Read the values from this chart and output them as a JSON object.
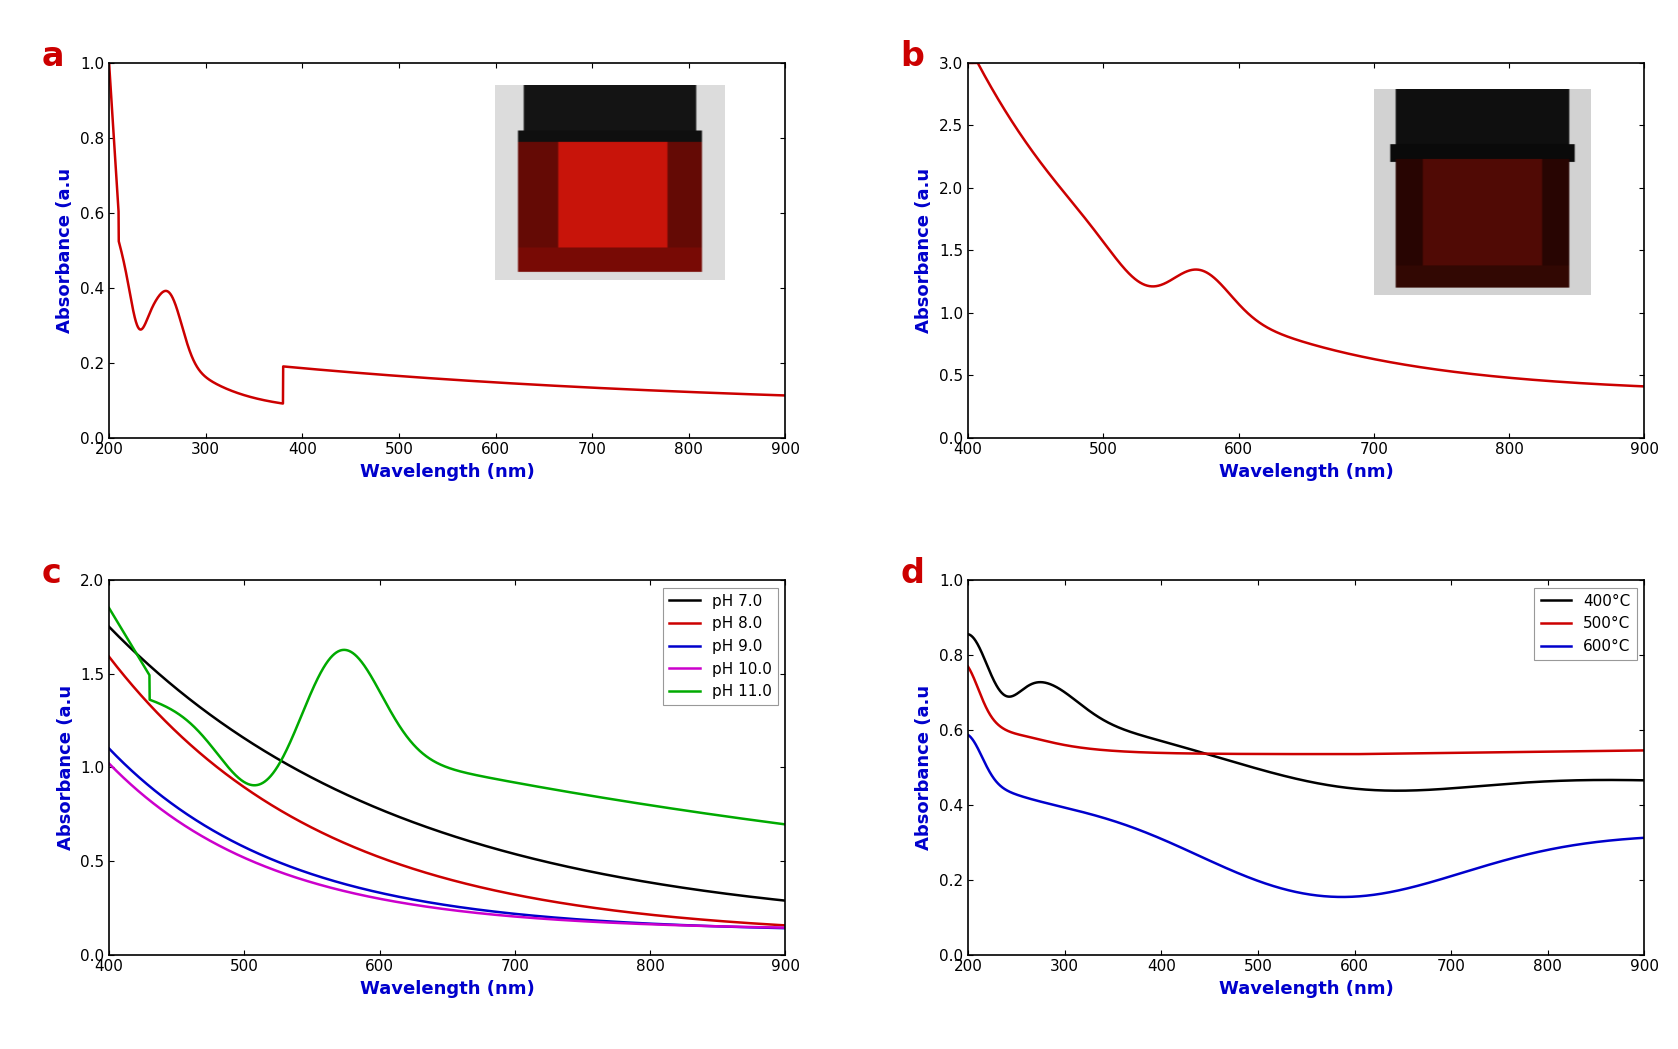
{
  "panel_a": {
    "label": "a",
    "xlabel": "Wavelength (nm)",
    "ylabel": "Absorbance (a.u",
    "xlim": [
      200,
      900
    ],
    "ylim": [
      0.0,
      1.0
    ],
    "xticks": [
      200,
      300,
      400,
      500,
      600,
      700,
      800,
      900
    ],
    "yticks": [
      0.0,
      0.2,
      0.4,
      0.6,
      0.8,
      1.0
    ],
    "line_color": "#cc0000"
  },
  "panel_b": {
    "label": "b",
    "xlabel": "Wavelength (nm)",
    "ylabel": "Absorbance (a.u",
    "xlim": [
      400,
      900
    ],
    "ylim": [
      0.0,
      3.0
    ],
    "xticks": [
      400,
      500,
      600,
      700,
      800,
      900
    ],
    "yticks": [
      0.0,
      0.5,
      1.0,
      1.5,
      2.0,
      2.5,
      3.0
    ],
    "line_color": "#cc0000"
  },
  "panel_c": {
    "label": "c",
    "xlabel": "Wavelength (nm)",
    "ylabel": "Absorbance (a.u",
    "xlim": [
      400,
      900
    ],
    "ylim": [
      0.0,
      2.0
    ],
    "xticks": [
      400,
      500,
      600,
      700,
      800,
      900
    ],
    "yticks": [
      0.0,
      0.5,
      1.0,
      1.5,
      2.0
    ],
    "legend_labels": [
      "pH 7.0",
      "pH 8.0",
      "pH 9.0",
      "pH 10.0",
      "pH 11.0"
    ],
    "legend_colors": [
      "#000000",
      "#cc0000",
      "#0000cc",
      "#cc00cc",
      "#00aa00"
    ]
  },
  "panel_d": {
    "label": "d",
    "xlabel": "Wavelength (nm)",
    "ylabel": "Absorbance (a.u",
    "xlim": [
      200,
      900
    ],
    "ylim": [
      0.0,
      1.0
    ],
    "xticks": [
      200,
      300,
      400,
      500,
      600,
      700,
      800,
      900
    ],
    "yticks": [
      0.0,
      0.2,
      0.4,
      0.6,
      0.8,
      1.0
    ],
    "legend_labels": [
      "400°C",
      "500°C",
      "600°C"
    ],
    "legend_colors": [
      "#000000",
      "#cc0000",
      "#0000cc"
    ]
  },
  "label_color": "#cc0000",
  "axis_label_color": "#0000cc",
  "tick_label_color": "#000000",
  "background_color": "#ffffff"
}
